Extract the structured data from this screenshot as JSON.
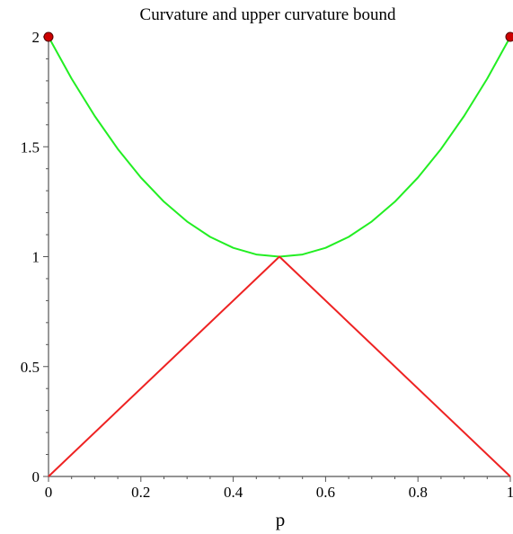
{
  "chart_data": {
    "type": "line",
    "title": "Curvature and upper curvature bound",
    "xlabel": "p",
    "ylabel": "",
    "xlim": [
      0,
      1
    ],
    "ylim": [
      0,
      2
    ],
    "grid": false,
    "x_ticks": [
      "0",
      "0.2",
      "0.4",
      "0.6",
      "0.8",
      "1"
    ],
    "y_ticks": [
      "0",
      "0.5",
      "1",
      "1.5",
      "2"
    ],
    "series": [
      {
        "color": "#22ee22",
        "x": [
          0,
          0.05,
          0.1,
          0.15,
          0.2,
          0.25,
          0.3,
          0.35,
          0.4,
          0.45,
          0.5,
          0.55,
          0.6,
          0.65,
          0.7,
          0.75,
          0.8,
          0.85,
          0.9,
          0.95,
          1
        ],
        "y": [
          2,
          1.81,
          1.64,
          1.49,
          1.36,
          1.25,
          1.16,
          1.09,
          1.04,
          1.01,
          1,
          1.01,
          1.04,
          1.09,
          1.16,
          1.25,
          1.36,
          1.49,
          1.64,
          1.81,
          2
        ]
      },
      {
        "color": "#ee2222",
        "x": [
          0,
          0.5,
          1
        ],
        "y": [
          0,
          1,
          0
        ]
      }
    ],
    "points": [
      {
        "x": 0,
        "y": 2,
        "color": "#cc0000"
      },
      {
        "x": 1,
        "y": 2,
        "color": "#cc0000"
      }
    ]
  }
}
